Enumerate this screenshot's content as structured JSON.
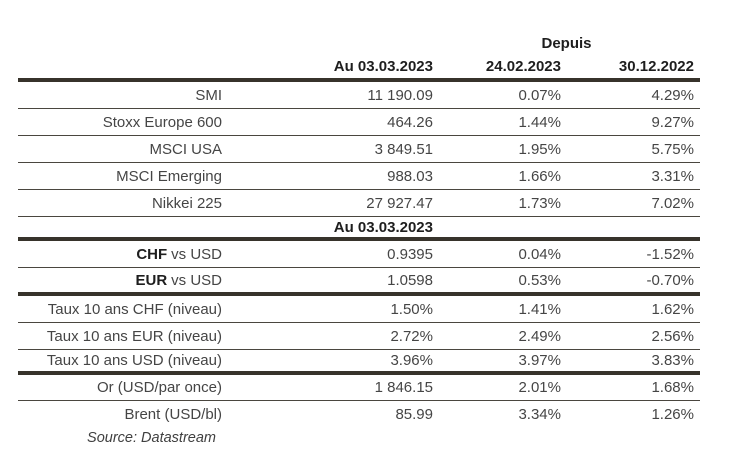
{
  "table": {
    "header": {
      "depuis_label": "Depuis",
      "col_current": "Au 03.03.2023",
      "col_since_1": "24.02.2023",
      "col_since_2": "30.12.2022"
    },
    "indices": [
      {
        "label": "SMI",
        "current": "11 190.09",
        "since_1": "0.07%",
        "since_2": "4.29%"
      },
      {
        "label": "Stoxx Europe 600",
        "current": "464.26",
        "since_1": "1.44%",
        "since_2": "9.27%"
      },
      {
        "label": "MSCI USA",
        "current": "3 849.51",
        "since_1": "1.95%",
        "since_2": "5.75%"
      },
      {
        "label": "MSCI Emerging",
        "current": "988.03",
        "since_1": "1.66%",
        "since_2": "3.31%"
      },
      {
        "label": "Nikkei 225",
        "current": "27 927.47",
        "since_1": "1.73%",
        "since_2": "7.02%"
      }
    ],
    "section_header": "Au 03.03.2023",
    "fx": [
      {
        "code": "CHF",
        "rest": "vs USD",
        "current": "0.9395",
        "since_1": "0.04%",
        "since_2": "-1.52%"
      },
      {
        "code": "EUR",
        "rest": "vs USD",
        "current": "1.0598",
        "since_1": "0.53%",
        "since_2": "-0.70%"
      }
    ],
    "rates": [
      {
        "label": "Taux 10 ans CHF (niveau)",
        "current": "1.50%",
        "since_1": "1.41%",
        "since_2": "1.62%"
      },
      {
        "label": "Taux 10 ans EUR (niveau)",
        "current": "2.72%",
        "since_1": "2.49%",
        "since_2": "2.56%"
      },
      {
        "label": "Taux 10 ans USD (niveau)",
        "current": "3.96%",
        "since_1": "3.97%",
        "since_2": "3.83%"
      }
    ],
    "commodities": [
      {
        "label": "Or (USD/par once)",
        "current": "1 846.15",
        "since_1": "2.01%",
        "since_2": "1.68%"
      },
      {
        "label": "Brent (USD/bl)",
        "current": "85.99",
        "since_1": "3.34%",
        "since_2": "1.26%"
      }
    ],
    "source": "Source: Datastream"
  },
  "colors": {
    "rule_thick": "#37332b",
    "rule_thin": "#4a463f",
    "text_body": "#454545",
    "text_bold": "#1e1e1e",
    "background": "#ffffff"
  }
}
